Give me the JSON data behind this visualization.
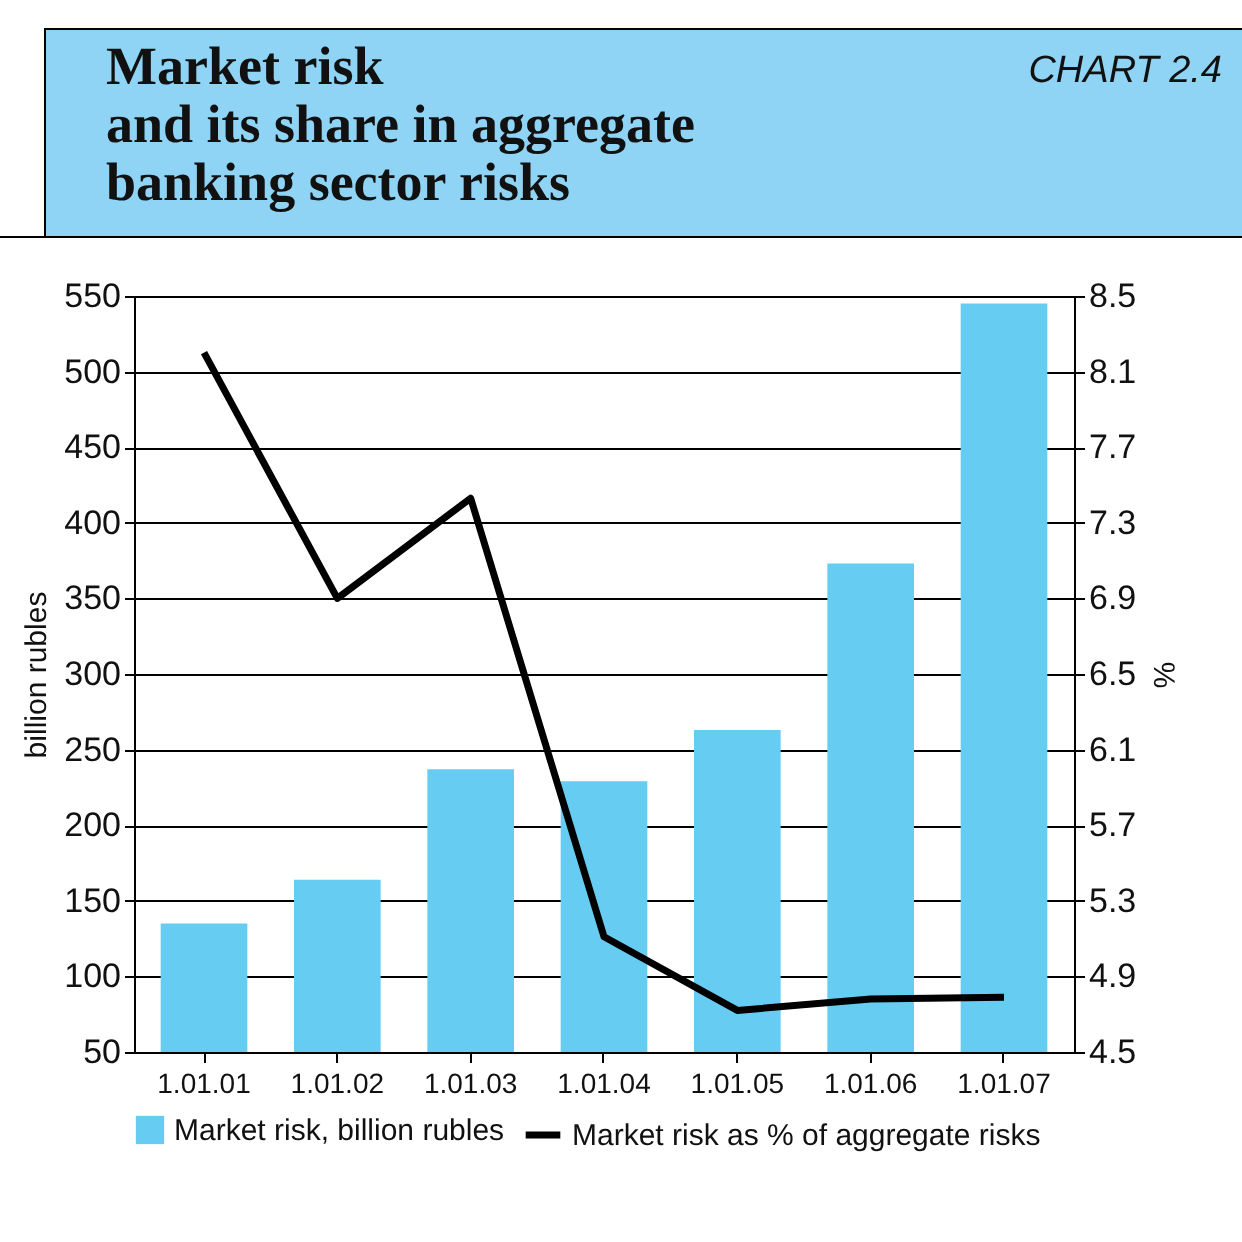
{
  "chart_data": {
    "type": "bar",
    "title": "Market risk\nand its share in aggregate\nbanking sector risks",
    "annotations": [
      "CHART 2.4"
    ],
    "categories": [
      "1.01.01",
      "1.01.02",
      "1.01.03",
      "1.01.04",
      "1.01.05",
      "1.01.06",
      "1.01.07"
    ],
    "series": [
      {
        "name": "Market risk, billion rubles",
        "color": "#66ccf2",
        "values": [
          135,
          164,
          237,
          229,
          263,
          373,
          545
        ]
      },
      {
        "name": "Market risk as % of aggregate risks",
        "type": "line",
        "axis": "y2",
        "color": "#000000",
        "values": [
          8.2,
          6.9,
          7.43,
          5.11,
          4.72,
          4.78,
          4.79
        ]
      }
    ],
    "ylabel": "billion rubles",
    "y2label": "%",
    "ylim": [
      50,
      550
    ],
    "yticks": [
      50,
      100,
      150,
      200,
      250,
      300,
      350,
      400,
      450,
      500,
      550
    ],
    "y2lim": [
      4.5,
      8.5
    ],
    "y2ticks": [
      {
        "value": 4.5,
        "label": "4.5"
      },
      {
        "value": 4.9,
        "label": "4.9"
      },
      {
        "value": 5.3,
        "label": "5.3"
      },
      {
        "value": 5.7,
        "label": "5.7"
      },
      {
        "value": 6.1,
        "label": "6.1"
      },
      {
        "value": 6.5,
        "label": "6.5"
      },
      {
        "value": 6.9,
        "label": "6.9"
      },
      {
        "value": 7.3,
        "label": "7.3"
      },
      {
        "value": 7.7,
        "label": "7.7"
      },
      {
        "value": 8.1,
        "label": "8.1"
      },
      {
        "value": 8.5,
        "label": "8.5"
      }
    ],
    "grid": "y",
    "legend": "bottom",
    "marker": "none",
    "line_style": "solid"
  }
}
